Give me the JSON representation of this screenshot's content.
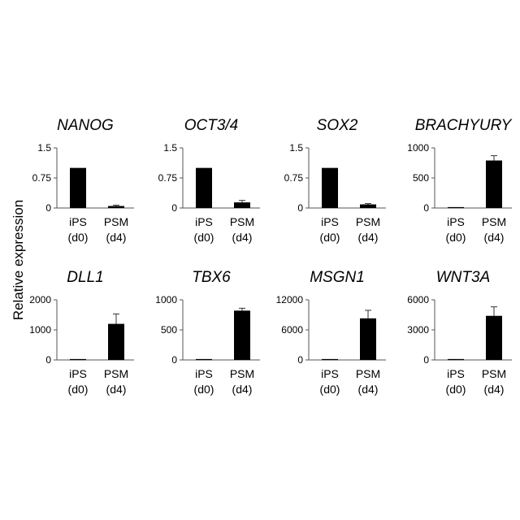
{
  "figure": {
    "ylabel": "Relative expression"
  },
  "chart_data": [
    {
      "type": "bar",
      "title": "NANOG",
      "categories": [
        "iPS\n(d0)",
        "PSM\n(d4)"
      ],
      "values": [
        1.0,
        0.05
      ],
      "errors": [
        0.0,
        0.02
      ],
      "ylim": [
        0,
        1.5
      ],
      "yticks": [
        "0",
        "0.75",
        "1.5"
      ]
    },
    {
      "type": "bar",
      "title": "OCT3/4",
      "categories": [
        "iPS\n(d0)",
        "PSM\n(d4)"
      ],
      "values": [
        1.0,
        0.14
      ],
      "errors": [
        0.0,
        0.05
      ],
      "ylim": [
        0,
        1.5
      ],
      "yticks": [
        "0",
        "0.75",
        "1.5"
      ]
    },
    {
      "type": "bar",
      "title": "SOX2",
      "categories": [
        "iPS\n(d0)",
        "PSM\n(d4)"
      ],
      "values": [
        1.0,
        0.09
      ],
      "errors": [
        0.0,
        0.02
      ],
      "ylim": [
        0,
        1.5
      ],
      "yticks": [
        "0",
        "0.75",
        "1.5"
      ]
    },
    {
      "type": "bar",
      "title": "BRACHYURY",
      "categories": [
        "iPS\n(d0)",
        "PSM\n(d4)"
      ],
      "values": [
        1,
        790
      ],
      "errors": [
        0,
        80
      ],
      "ylim": [
        0,
        1000
      ],
      "yticks": [
        "0",
        "500",
        "1000"
      ]
    },
    {
      "type": "bar",
      "title": "DLL1",
      "categories": [
        "iPS\n(d0)",
        "PSM\n(d4)"
      ],
      "values": [
        0,
        1200
      ],
      "errors": [
        0,
        330
      ],
      "ylim": [
        0,
        2000
      ],
      "yticks": [
        "0",
        "1000",
        "2000"
      ]
    },
    {
      "type": "bar",
      "title": "TBX6",
      "categories": [
        "iPS\n(d0)",
        "PSM\n(d4)"
      ],
      "values": [
        0,
        820
      ],
      "errors": [
        0,
        40
      ],
      "ylim": [
        0,
        1000
      ],
      "yticks": [
        "0",
        "500",
        "1000"
      ]
    },
    {
      "type": "bar",
      "title": "MSGN1",
      "categories": [
        "iPS\n(d0)",
        "PSM\n(d4)"
      ],
      "values": [
        0,
        8300
      ],
      "errors": [
        0,
        1600
      ],
      "ylim": [
        0,
        12000
      ],
      "yticks": [
        "0",
        "6000",
        "12000"
      ]
    },
    {
      "type": "bar",
      "title": "WNT3A",
      "categories": [
        "iPS\n(d0)",
        "PSM\n(d4)"
      ],
      "values": [
        0,
        4400
      ],
      "errors": [
        0,
        900
      ],
      "ylim": [
        0,
        6000
      ],
      "yticks": [
        "0",
        "3000",
        "6000"
      ]
    }
  ]
}
